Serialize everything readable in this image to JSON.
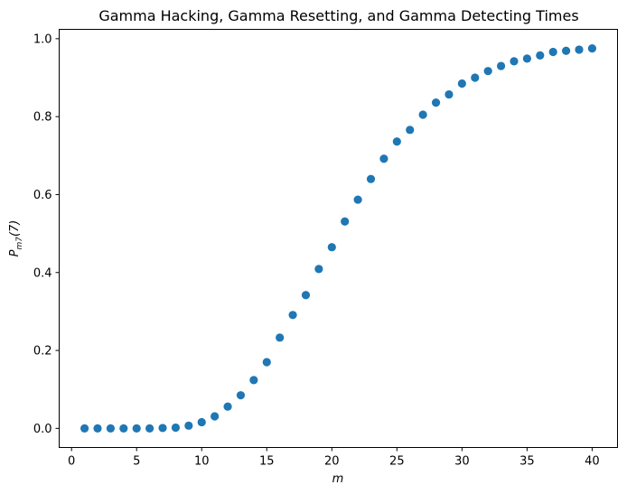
{
  "chart_data": {
    "type": "scatter",
    "title": "Gamma Hacking, Gamma Resetting, and Gamma Detecting Times",
    "xlabel": "m",
    "ylabel_main": "P",
    "ylabel_sub": "m7",
    "ylabel_tail": "(7)",
    "xlim": [
      -0.95,
      41.95
    ],
    "ylim": [
      -0.049,
      1.024
    ],
    "xticks": [
      0,
      5,
      10,
      15,
      20,
      25,
      30,
      35,
      40
    ],
    "xtick_labels": [
      "0",
      "5",
      "10",
      "15",
      "20",
      "25",
      "30",
      "35",
      "40"
    ],
    "yticks": [
      0.0,
      0.2,
      0.4,
      0.6,
      0.8,
      1.0
    ],
    "ytick_labels": [
      "0.0",
      "0.2",
      "0.4",
      "0.6",
      "0.8",
      "1.0"
    ],
    "grid": false,
    "marker_color": "#1f77b4",
    "x": [
      1,
      2,
      3,
      4,
      5,
      6,
      7,
      8,
      9,
      10,
      11,
      12,
      13,
      14,
      15,
      16,
      17,
      18,
      19,
      20,
      21,
      22,
      23,
      24,
      25,
      26,
      27,
      28,
      29,
      30,
      31,
      32,
      33,
      34,
      35,
      36,
      37,
      38,
      39,
      40
    ],
    "y": [
      0.0,
      0.0,
      0.0,
      0.0,
      0.0,
      0.0,
      0.001,
      0.002,
      0.007,
      0.016,
      0.031,
      0.056,
      0.085,
      0.124,
      0.17,
      0.233,
      0.291,
      0.342,
      0.409,
      0.465,
      0.531,
      0.587,
      0.64,
      0.692,
      0.736,
      0.766,
      0.805,
      0.836,
      0.857,
      0.885,
      0.9,
      0.917,
      0.93,
      0.942,
      0.949,
      0.957,
      0.966,
      0.969,
      0.972,
      0.975
    ]
  }
}
